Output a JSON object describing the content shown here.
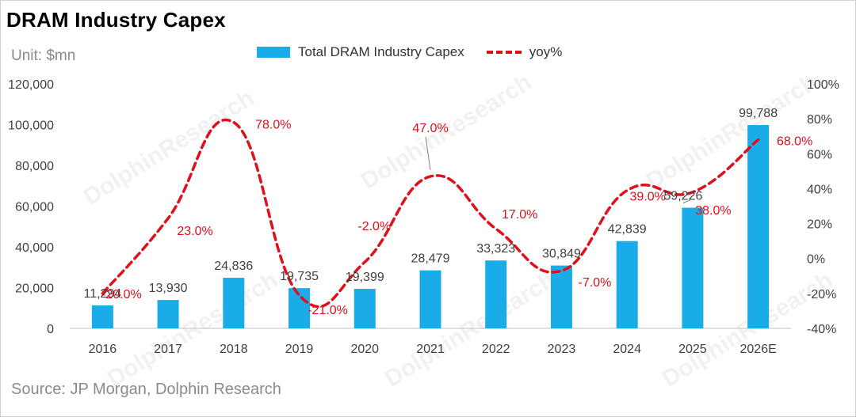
{
  "title": "DRAM Industry Capex",
  "unit": "Unit: $mn",
  "source": "Source: JP Morgan, Dolphin Research",
  "watermark": "DolphinResearch",
  "chart_data": {
    "type": "bar",
    "categories": [
      "2016",
      "2017",
      "2018",
      "2019",
      "2020",
      "2021",
      "2022",
      "2023",
      "2024",
      "2025",
      "2026E"
    ],
    "series": [
      {
        "name": "Total DRAM Industry Capex",
        "type": "bar",
        "axis": "left",
        "color": "#1AACE8",
        "values": [
          11294,
          13930,
          24836,
          19735,
          19399,
          28479,
          33323,
          30849,
          42839,
          59226,
          99788
        ],
        "labels": [
          "11,294",
          "13,930",
          "24,836",
          "19,735",
          "19,399",
          "28,479",
          "33,323",
          "30,849",
          "42,839",
          "59,226",
          "99,788"
        ]
      },
      {
        "name": "yoy%",
        "type": "line",
        "style": "dashed-smooth",
        "axis": "right",
        "color": "#E0101A",
        "values": [
          -20.0,
          23.0,
          78.0,
          -21.0,
          -2.0,
          47.0,
          17.0,
          -7.0,
          39.0,
          38.0,
          68.0
        ],
        "labels": [
          "-20.0%",
          "23.0%",
          "78.0%",
          "-21.0%",
          "-2.0%",
          "47.0%",
          "17.0%",
          "-7.0%",
          "39.0%",
          "38.0%",
          "68.0%"
        ]
      }
    ],
    "y_left": {
      "min": 0,
      "max": 120000,
      "ticks": [
        "0",
        "20,000",
        "40,000",
        "60,000",
        "80,000",
        "100,000",
        "120,000"
      ]
    },
    "y_right": {
      "min": -40,
      "max": 100,
      "ticks": [
        "-40%",
        "-20%",
        "0%",
        "20%",
        "40%",
        "60%",
        "80%",
        "100%"
      ]
    },
    "grid": false,
    "legend_position": "top"
  }
}
